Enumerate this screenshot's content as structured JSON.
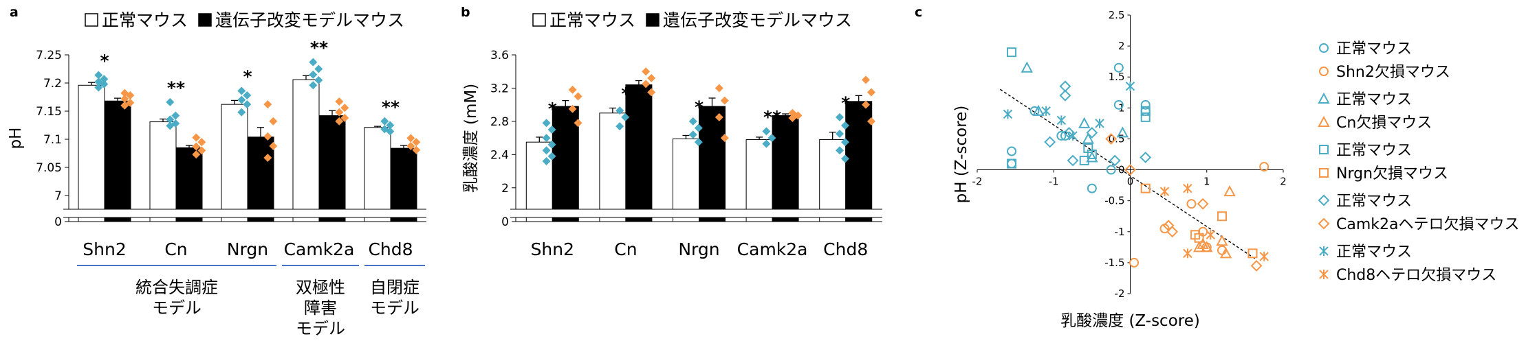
{
  "colors": {
    "normal": "#4bacc6",
    "knockout": "#f79646",
    "bar_normal": "#ffffff",
    "bar_tg": "#000000",
    "group_line": "#4472c4"
  },
  "panels": {
    "a": "a",
    "b": "b",
    "c": "c"
  },
  "legend_ab": {
    "normal": "正常マウス",
    "tg": "遺伝子改変モデルマウス"
  },
  "groups": {
    "schizophrenia": [
      "統合失調症",
      "モデル"
    ],
    "bipolar": [
      "双極性",
      "障害",
      "モデル"
    ],
    "autism": [
      "自閉症",
      "モデル"
    ]
  },
  "chart_data": [
    {
      "id": "a",
      "type": "bar",
      "categories": [
        "Shn2",
        "Cn",
        "Nrgn",
        "Camk2a",
        "Chd8"
      ],
      "ylabel": "pH",
      "ylim": [
        7.0,
        7.25
      ],
      "yticks": [
        "7.25",
        "7.2",
        "7.15",
        "7.1",
        "7.05",
        "7"
      ],
      "broken_axis_bottom": "0",
      "series": [
        {
          "name": "正常マウス",
          "values": [
            7.196,
            7.131,
            7.162,
            7.206,
            7.121
          ],
          "errors": [
            0.005,
            0.005,
            0.007,
            0.007,
            0.002
          ]
        },
        {
          "name": "遺伝子改変モデルマウス",
          "values": [
            7.168,
            7.085,
            7.104,
            7.142,
            7.084
          ],
          "errors": [
            0.005,
            0.004,
            0.017,
            0.009,
            0.005
          ]
        }
      ],
      "points": [
        [
          [
            7.214,
            7.207,
            7.202,
            7.198,
            7.192
          ],
          [
            7.182,
            7.178,
            7.172,
            7.165,
            7.16
          ]
        ],
        [
          [
            7.166,
            7.142,
            7.135,
            7.128,
            7.124
          ],
          [
            7.103,
            7.095,
            7.087,
            7.08,
            7.073
          ]
        ],
        [
          [
            7.186,
            7.178,
            7.17,
            7.162,
            7.148
          ],
          [
            7.162,
            7.132,
            7.105,
            7.088,
            7.067
          ]
        ],
        [
          [
            7.237,
            7.225,
            7.215,
            7.205,
            7.196
          ],
          [
            7.167,
            7.156,
            7.148,
            7.138,
            7.132
          ]
        ],
        [
          [
            7.132,
            7.125,
            7.118,
            7.114
          ],
          [
            7.102,
            7.095,
            7.088,
            7.081
          ]
        ]
      ],
      "significance": [
        "*",
        "**",
        "*",
        "**",
        "**"
      ]
    },
    {
      "id": "b",
      "type": "bar",
      "categories": [
        "Shn2",
        "Cn",
        "Nrgn",
        "Camk2a",
        "Chd8"
      ],
      "ylabel": "乳酸濃度 (mM)",
      "ylim": [
        1.8,
        3.6
      ],
      "yticks": [
        "3.6",
        "3.2",
        "2.8",
        "2.4",
        "2"
      ],
      "broken_axis_bottom": "0",
      "series": [
        {
          "name": "正常マウス",
          "values": [
            2.55,
            2.9,
            2.59,
            2.58,
            2.58
          ],
          "errors": [
            0.06,
            0.06,
            0.04,
            0.03,
            0.09
          ]
        },
        {
          "name": "遺伝子改変モデルマウス",
          "values": [
            2.98,
            3.24,
            2.98,
            2.87,
            3.04
          ],
          "errors": [
            0.07,
            0.05,
            0.1,
            0.02,
            0.07
          ]
        }
      ],
      "points": [
        [
          [
            2.78,
            2.7,
            2.6,
            2.52,
            2.45,
            2.38,
            2.32
          ],
          [
            3.18,
            3.1,
            2.95,
            2.78
          ]
        ],
        [
          [
            2.93,
            2.85,
            2.74
          ],
          [
            3.4,
            3.32,
            3.25,
            3.15
          ]
        ],
        [
          [
            2.8,
            2.72,
            2.64,
            2.55
          ],
          [
            3.2,
            3.05,
            2.85,
            2.6
          ]
        ],
        [
          [
            2.68,
            2.6,
            2.53
          ],
          [
            2.9,
            2.87,
            2.84
          ]
        ],
        [
          [
            2.85,
            2.75,
            2.65,
            2.55,
            2.45,
            2.35
          ],
          [
            3.3,
            3.15,
            3.0,
            2.8
          ]
        ]
      ],
      "significance": [
        "*",
        "*",
        "*",
        "**",
        "*"
      ]
    },
    {
      "id": "c",
      "type": "scatter",
      "xlabel": "乳酸濃度 (Z-score)",
      "ylabel": "pH (Z-score)",
      "xlim": [
        -2,
        2
      ],
      "ylim": [
        -2,
        2.5
      ],
      "xticks": [
        "-2",
        "-1",
        "0",
        "1",
        "2"
      ],
      "yticks": [
        "2.5",
        "2",
        "1.5",
        "1",
        "0.5",
        "0",
        "-0.5",
        "-1",
        "-1.5",
        "-2"
      ],
      "trendline": {
        "from": [
          -1.7,
          1.3
        ],
        "to": [
          1.65,
          -1.45
        ]
      },
      "series": [
        {
          "name": "正常マウス",
          "marker": "circle",
          "color": "normal",
          "points": [
            [
              -1.55,
              0.3
            ],
            [
              -1.55,
              0.1
            ],
            [
              -1.25,
              0.95
            ],
            [
              -0.9,
              0.55
            ],
            [
              -0.85,
              0.55
            ],
            [
              -0.5,
              -0.3
            ],
            [
              -0.25,
              0.0
            ],
            [
              -0.15,
              1.65
            ],
            [
              -0.15,
              1.05
            ],
            [
              0.2,
              1.05
            ],
            [
              0.2,
              0.95
            ]
          ]
        },
        {
          "name": "Shn2欠損マウス",
          "marker": "circle",
          "color": "knockout",
          "points": [
            [
              0.05,
              -1.5
            ],
            [
              0.45,
              -0.95
            ],
            [
              0.8,
              -0.55
            ],
            [
              0.95,
              -1.0
            ],
            [
              1.0,
              -1.25
            ],
            [
              1.2,
              -1.3
            ],
            [
              1.75,
              0.05
            ]
          ]
        },
        {
          "name": "正常マウス",
          "marker": "triangle",
          "color": "normal",
          "points": [
            [
              -1.35,
              1.65
            ],
            [
              -1.2,
              0.95
            ],
            [
              -0.6,
              0.75
            ],
            [
              -0.55,
              0.5
            ],
            [
              -0.5,
              0.2
            ],
            [
              -0.1,
              0.6
            ]
          ]
        },
        {
          "name": "Cn欠損マウス",
          "marker": "triangle",
          "color": "knockout",
          "points": [
            [
              0.9,
              -1.25
            ],
            [
              0.95,
              -1.2
            ],
            [
              1.0,
              -1.25
            ],
            [
              1.2,
              -1.15
            ],
            [
              1.25,
              -1.35
            ],
            [
              1.3,
              -0.35
            ]
          ]
        },
        {
          "name": "正常マウス",
          "marker": "square",
          "color": "normal",
          "points": [
            [
              -1.55,
              1.9
            ],
            [
              -1.55,
              0.1
            ],
            [
              -0.6,
              0.15
            ],
            [
              -0.55,
              0.35
            ],
            [
              -0.5,
              0.25
            ],
            [
              0.2,
              0.95
            ],
            [
              0.2,
              0.85
            ]
          ]
        },
        {
          "name": "Nrgn欠損マウス",
          "marker": "square",
          "color": "knockout",
          "points": [
            [
              0.2,
              -0.3
            ],
            [
              0.85,
              -1.05
            ],
            [
              0.9,
              -1.1
            ],
            [
              1.2,
              -0.75
            ],
            [
              1.6,
              -1.35
            ]
          ]
        },
        {
          "name": "正常マウス",
          "marker": "diamond",
          "color": "normal",
          "points": [
            [
              -1.05,
              0.45
            ],
            [
              -0.85,
              1.35
            ],
            [
              -0.85,
              1.2
            ],
            [
              -0.8,
              0.6
            ],
            [
              -0.75,
              0.15
            ],
            [
              -0.5,
              0.6
            ],
            [
              -0.2,
              0.15
            ],
            [
              0.2,
              0.2
            ]
          ]
        },
        {
          "name": "Camk2aヘテロ欠損マウス",
          "marker": "diamond",
          "color": "knockout",
          "points": [
            [
              -0.25,
              0.5
            ],
            [
              0.0,
              0.0
            ],
            [
              0.5,
              -0.9
            ],
            [
              0.55,
              -1.0
            ],
            [
              0.95,
              -0.55
            ],
            [
              1.65,
              -1.55
            ]
          ]
        },
        {
          "name": "正常マウス",
          "marker": "asterisk",
          "color": "normal",
          "points": [
            [
              -1.6,
              0.9
            ],
            [
              -1.1,
              0.95
            ],
            [
              -0.9,
              0.8
            ],
            [
              -0.75,
              0.55
            ],
            [
              -0.4,
              0.75
            ],
            [
              0.0,
              1.35
            ]
          ]
        },
        {
          "name": "Chd8ヘテロ欠損マウス",
          "marker": "asterisk",
          "color": "knockout",
          "points": [
            [
              0.45,
              -0.35
            ],
            [
              0.75,
              -0.3
            ],
            [
              0.75,
              -1.35
            ],
            [
              1.05,
              -1.05
            ],
            [
              1.75,
              -1.4
            ]
          ]
        }
      ]
    }
  ]
}
